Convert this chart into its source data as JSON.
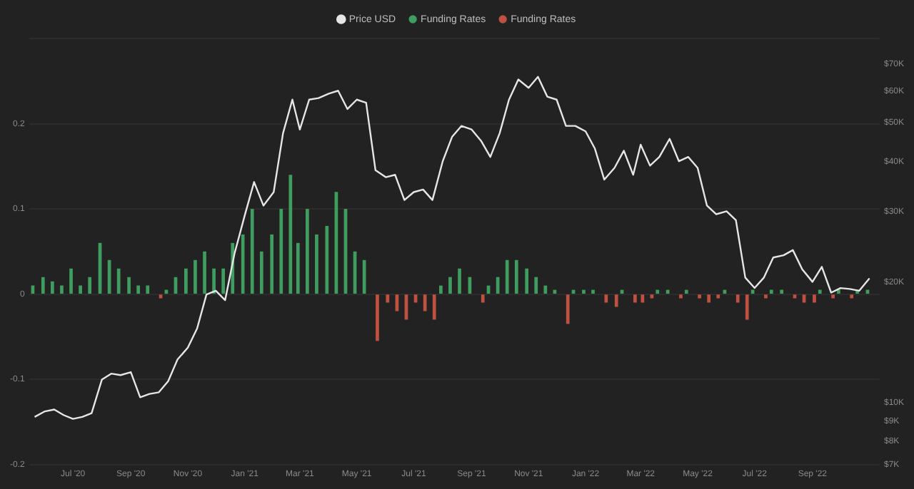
{
  "chart_data": {
    "type": "bar",
    "x": [
      "2020-05-21",
      "2020-06-01",
      "2020-06-11",
      "2020-06-21",
      "2020-07-01",
      "2020-07-11",
      "2020-07-21",
      "2020-08-01",
      "2020-08-11",
      "2020-08-21",
      "2020-09-01",
      "2020-09-11",
      "2020-09-21",
      "2020-10-01",
      "2020-10-11",
      "2020-10-21",
      "2020-11-01",
      "2020-11-11",
      "2020-11-21",
      "2020-12-01",
      "2020-12-11",
      "2020-12-21",
      "2021-01-01",
      "2021-01-11",
      "2021-01-21",
      "2021-02-01",
      "2021-02-11",
      "2021-02-21",
      "2021-03-01",
      "2021-03-11",
      "2021-03-21",
      "2021-04-01",
      "2021-04-11",
      "2021-04-21",
      "2021-05-01",
      "2021-05-11",
      "2021-05-21",
      "2021-06-01",
      "2021-06-11",
      "2021-06-21",
      "2021-07-01",
      "2021-07-11",
      "2021-07-21",
      "2021-08-01",
      "2021-08-11",
      "2021-08-21",
      "2021-09-01",
      "2021-09-11",
      "2021-09-21",
      "2021-10-01",
      "2021-10-11",
      "2021-10-21",
      "2021-11-01",
      "2021-11-11",
      "2021-11-21",
      "2021-12-01",
      "2021-12-11",
      "2021-12-21",
      "2022-01-01",
      "2022-01-11",
      "2022-01-21",
      "2022-02-01",
      "2022-02-11",
      "2022-02-21",
      "2022-03-01",
      "2022-03-11",
      "2022-03-21",
      "2022-04-01",
      "2022-04-11",
      "2022-04-21",
      "2022-05-01",
      "2022-05-11",
      "2022-05-21",
      "2022-06-01",
      "2022-06-11",
      "2022-06-21",
      "2022-07-01",
      "2022-07-11",
      "2022-07-21",
      "2022-08-01",
      "2022-08-11",
      "2022-08-21",
      "2022-09-01",
      "2022-09-11",
      "2022-09-21",
      "2022-10-01",
      "2022-10-11",
      "2022-10-21",
      "2022-11-01"
    ],
    "series": [
      {
        "name": "Price USD",
        "type": "line",
        "axis": "y2",
        "color": "#e6e6e6",
        "values": [
          9200,
          9500,
          9600,
          9300,
          9100,
          9200,
          9400,
          11400,
          11800,
          11700,
          11900,
          10300,
          10500,
          10600,
          11300,
          12800,
          13700,
          15300,
          18600,
          19000,
          18000,
          23500,
          29300,
          35500,
          31000,
          33500,
          47000,
          57000,
          48000,
          57000,
          57500,
          59000,
          60000,
          54000,
          57000,
          56000,
          38000,
          36500,
          37000,
          32000,
          33500,
          34000,
          32000,
          40000,
          46000,
          49000,
          48000,
          45000,
          41000,
          47000,
          57000,
          64000,
          61000,
          65000,
          58000,
          57000,
          49000,
          49000,
          47500,
          43000,
          36000,
          38500,
          42500,
          37000,
          44000,
          39000,
          41000,
          45500,
          40000,
          41000,
          38500,
          31000,
          29500,
          30000,
          28500,
          20500,
          19300,
          20500,
          23000,
          23300,
          24000,
          21500,
          20000,
          21800,
          18800,
          19300,
          19200,
          19000,
          20400
        ]
      },
      {
        "name": "Funding Rates",
        "color": "#3f9e5f",
        "values": [
          0.01,
          0.02,
          0.015,
          0.01,
          0.03,
          0.01,
          0.02,
          0.06,
          0.04,
          0.03,
          0.02,
          0.01,
          0.01,
          null,
          0.005,
          0.02,
          0.03,
          0.04,
          0.05,
          0.03,
          0.03,
          0.06,
          0.07,
          0.1,
          0.05,
          0.07,
          0.1,
          0.14,
          0.06,
          0.1,
          0.07,
          0.08,
          0.12,
          0.1,
          0.05,
          0.04,
          null,
          null,
          null,
          null,
          null,
          null,
          null,
          0.01,
          0.02,
          0.03,
          0.02,
          null,
          0.01,
          0.02,
          0.04,
          0.04,
          0.03,
          0.02,
          0.01,
          0.005,
          null,
          0.005,
          0.005,
          0.005,
          null,
          null,
          0.005,
          null,
          null,
          null,
          0.005,
          0.005,
          null,
          0.005,
          null,
          null,
          null,
          0.005,
          null,
          null,
          0.005,
          null,
          0.005,
          0.005,
          null,
          null,
          null,
          0.005,
          null,
          0.005,
          null,
          0.005,
          0.005
        ]
      },
      {
        "name": "Funding Rates",
        "color": "#c0503f",
        "values": [
          null,
          null,
          null,
          null,
          null,
          null,
          null,
          null,
          null,
          null,
          null,
          null,
          null,
          -0.005,
          null,
          null,
          null,
          null,
          null,
          null,
          null,
          null,
          null,
          null,
          null,
          null,
          null,
          null,
          null,
          null,
          null,
          null,
          null,
          null,
          null,
          null,
          -0.055,
          -0.01,
          -0.02,
          -0.03,
          -0.01,
          -0.02,
          -0.03,
          null,
          null,
          null,
          null,
          -0.01,
          null,
          null,
          null,
          null,
          null,
          null,
          null,
          null,
          -0.035,
          null,
          null,
          null,
          -0.01,
          -0.015,
          null,
          -0.01,
          -0.01,
          -0.005,
          null,
          null,
          -0.005,
          null,
          -0.005,
          -0.01,
          -0.005,
          null,
          -0.01,
          -0.03,
          null,
          -0.005,
          null,
          null,
          -0.005,
          -0.01,
          -0.01,
          null,
          -0.005,
          null,
          -0.005,
          null,
          null
        ]
      }
    ],
    "xlim": [
      "2020-05-15",
      "2022-11-12"
    ],
    "xticks": [
      {
        "value": "2020-07-01",
        "label": "Jul '20"
      },
      {
        "value": "2020-09-01",
        "label": "Sep '20"
      },
      {
        "value": "2020-11-01",
        "label": "Nov '20"
      },
      {
        "value": "2021-01-01",
        "label": "Jan '21"
      },
      {
        "value": "2021-03-01",
        "label": "Mar '21"
      },
      {
        "value": "2021-05-01",
        "label": "May '21"
      },
      {
        "value": "2021-07-01",
        "label": "Jul '21"
      },
      {
        "value": "2021-09-01",
        "label": "Sep '21"
      },
      {
        "value": "2021-11-01",
        "label": "Nov '21"
      },
      {
        "value": "2022-01-01",
        "label": "Jan '22"
      },
      {
        "value": "2022-03-01",
        "label": "Mar '22"
      },
      {
        "value": "2022-05-01",
        "label": "May '22"
      },
      {
        "value": "2022-07-01",
        "label": "Jul '22"
      },
      {
        "value": "2022-09-01",
        "label": "Sep '22"
      }
    ],
    "ylim": [
      -0.2,
      0.3
    ],
    "yticks": [
      -0.2,
      -0.1,
      0,
      0.1,
      0.2,
      {
        "value": 0.3,
        "label": null
      }
    ],
    "y2lim": [
      7000,
      81000
    ],
    "y2ticks": [
      {
        "value": 7000,
        "label": "$7K"
      },
      {
        "value": 8000,
        "label": "$8K"
      },
      {
        "value": 9000,
        "label": "$9K"
      },
      {
        "value": 10000,
        "label": "$10K"
      },
      {
        "value": 20000,
        "label": "$20K"
      },
      {
        "value": 30000,
        "label": "$30K"
      },
      {
        "value": 40000,
        "label": "$40K"
      },
      {
        "value": 50000,
        "label": "$50K"
      },
      {
        "value": 60000,
        "label": "$60K"
      },
      {
        "value": 70000,
        "label": "$70K"
      }
    ],
    "log": "y2",
    "grid": "y",
    "legend": "top",
    "marker": "none",
    "line_style": "solid"
  }
}
